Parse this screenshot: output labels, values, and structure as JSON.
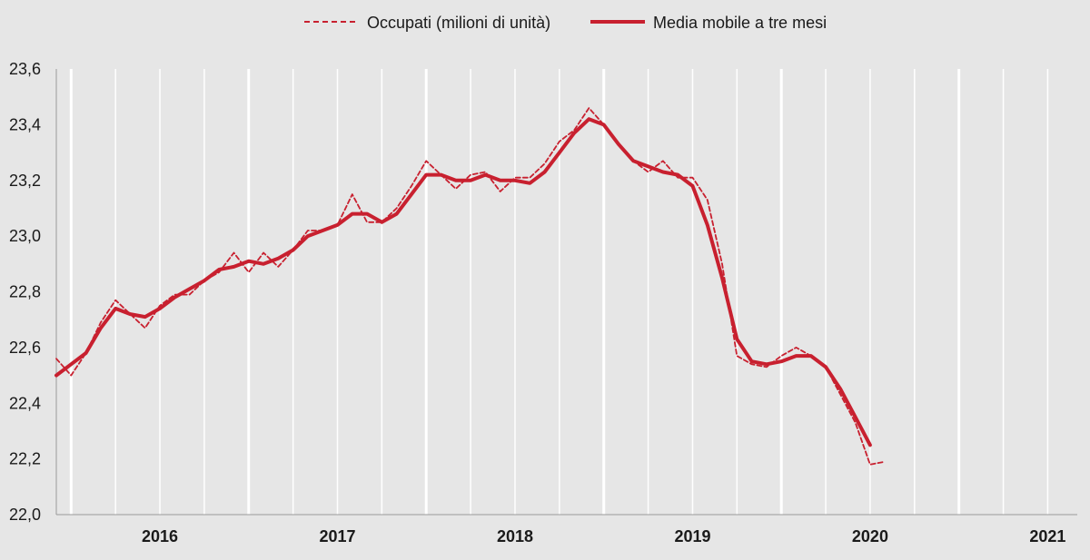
{
  "chart_data": {
    "type": "line",
    "title": "",
    "xlabel": "",
    "ylabel": "",
    "ylim": [
      22.0,
      23.6
    ],
    "ytick_labels": [
      "22,0",
      "22,2",
      "22,4",
      "22,6",
      "22,8",
      "23,0",
      "23,2",
      "23,4",
      "23,6"
    ],
    "years": [
      "2016",
      "2017",
      "2018",
      "2019",
      "2020",
      "2021"
    ],
    "grid": "vertical",
    "legend_position": "top",
    "colors": {
      "series": "#c8202f",
      "background": "#e6e6e6",
      "grid": "#ffffff"
    },
    "x_range_months": [
      "2015-12",
      "2021-09"
    ],
    "series": [
      {
        "name": "Occupati (milioni di unità)",
        "style": "dashed",
        "points": [
          [
            "2015-12",
            22.56
          ],
          [
            "2016-01",
            22.5
          ],
          [
            "2016-02",
            22.58
          ],
          [
            "2016-03",
            22.69
          ],
          [
            "2016-04",
            22.77
          ],
          [
            "2016-05",
            22.72
          ],
          [
            "2016-06",
            22.67
          ],
          [
            "2016-07",
            22.75
          ],
          [
            "2016-08",
            22.79
          ],
          [
            "2016-09",
            22.79
          ],
          [
            "2016-10",
            22.84
          ],
          [
            "2016-11",
            22.87
          ],
          [
            "2016-12",
            22.94
          ],
          [
            "2017-01",
            22.87
          ],
          [
            "2017-02",
            22.94
          ],
          [
            "2017-03",
            22.89
          ],
          [
            "2017-04",
            22.95
          ],
          [
            "2017-05",
            23.02
          ],
          [
            "2017-06",
            23.02
          ],
          [
            "2017-07",
            23.04
          ],
          [
            "2017-08",
            23.15
          ],
          [
            "2017-09",
            23.05
          ],
          [
            "2017-10",
            23.05
          ],
          [
            "2017-11",
            23.1
          ],
          [
            "2017-12",
            23.18
          ],
          [
            "2018-01",
            23.27
          ],
          [
            "2018-02",
            23.22
          ],
          [
            "2018-03",
            23.17
          ],
          [
            "2018-04",
            23.22
          ],
          [
            "2018-05",
            23.23
          ],
          [
            "2018-06",
            23.16
          ],
          [
            "2018-07",
            23.21
          ],
          [
            "2018-08",
            23.21
          ],
          [
            "2018-09",
            23.26
          ],
          [
            "2018-10",
            23.34
          ],
          [
            "2018-11",
            23.38
          ],
          [
            "2018-12",
            23.46
          ],
          [
            "2019-01",
            23.4
          ],
          [
            "2019-02",
            23.33
          ],
          [
            "2019-03",
            23.27
          ],
          [
            "2019-04",
            23.23
          ],
          [
            "2019-05",
            23.27
          ],
          [
            "2019-06",
            23.21
          ],
          [
            "2019-07",
            23.21
          ],
          [
            "2019-08",
            23.13
          ],
          [
            "2019-09",
            22.9
          ],
          [
            "2019-10",
            22.57
          ],
          [
            "2019-11",
            22.54
          ],
          [
            "2019-12",
            22.53
          ],
          [
            "2020-01",
            22.57
          ],
          [
            "2020-02",
            22.6
          ],
          [
            "2020-03",
            22.57
          ],
          [
            "2020-04",
            22.53
          ],
          [
            "2020-05",
            22.43
          ],
          [
            "2020-06",
            22.33
          ],
          [
            "2020-07",
            22.18
          ],
          [
            "2020-08",
            22.19
          ]
        ]
      },
      {
        "name": "Media mobile a tre mesi",
        "style": "solid",
        "points": [
          [
            "2015-12",
            22.5
          ],
          [
            "2016-01",
            22.54
          ],
          [
            "2016-02",
            22.58
          ],
          [
            "2016-03",
            22.67
          ],
          [
            "2016-04",
            22.74
          ],
          [
            "2016-05",
            22.72
          ],
          [
            "2016-06",
            22.71
          ],
          [
            "2016-07",
            22.74
          ],
          [
            "2016-08",
            22.78
          ],
          [
            "2016-09",
            22.81
          ],
          [
            "2016-10",
            22.84
          ],
          [
            "2016-11",
            22.88
          ],
          [
            "2016-12",
            22.89
          ],
          [
            "2017-01",
            22.91
          ],
          [
            "2017-02",
            22.9
          ],
          [
            "2017-03",
            22.92
          ],
          [
            "2017-04",
            22.95
          ],
          [
            "2017-05",
            23.0
          ],
          [
            "2017-06",
            23.02
          ],
          [
            "2017-07",
            23.04
          ],
          [
            "2017-08",
            23.08
          ],
          [
            "2017-09",
            23.08
          ],
          [
            "2017-10",
            23.05
          ],
          [
            "2017-11",
            23.08
          ],
          [
            "2017-12",
            23.15
          ],
          [
            "2018-01",
            23.22
          ],
          [
            "2018-02",
            23.22
          ],
          [
            "2018-03",
            23.2
          ],
          [
            "2018-04",
            23.2
          ],
          [
            "2018-05",
            23.22
          ],
          [
            "2018-06",
            23.2
          ],
          [
            "2018-07",
            23.2
          ],
          [
            "2018-08",
            23.19
          ],
          [
            "2018-09",
            23.23
          ],
          [
            "2018-10",
            23.3
          ],
          [
            "2018-11",
            23.37
          ],
          [
            "2018-12",
            23.42
          ],
          [
            "2019-01",
            23.4
          ],
          [
            "2019-02",
            23.33
          ],
          [
            "2019-03",
            23.27
          ],
          [
            "2019-04",
            23.25
          ],
          [
            "2019-05",
            23.23
          ],
          [
            "2019-06",
            23.22
          ],
          [
            "2019-07",
            23.18
          ],
          [
            "2019-08",
            23.04
          ],
          [
            "2019-09",
            22.85
          ],
          [
            "2019-10",
            22.63
          ],
          [
            "2019-11",
            22.55
          ],
          [
            "2019-12",
            22.54
          ],
          [
            "2020-01",
            22.55
          ],
          [
            "2020-02",
            22.57
          ],
          [
            "2020-03",
            22.57
          ],
          [
            "2020-04",
            22.53
          ],
          [
            "2020-05",
            22.45
          ],
          [
            "2020-06",
            22.35
          ],
          [
            "2020-07",
            22.25
          ]
        ]
      }
    ]
  }
}
